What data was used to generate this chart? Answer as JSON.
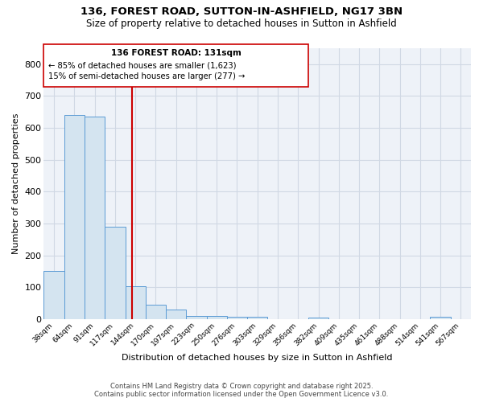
{
  "title_line1": "136, FOREST ROAD, SUTTON-IN-ASHFIELD, NG17 3BN",
  "title_line2": "Size of property relative to detached houses in Sutton in Ashfield",
  "xlabel": "Distribution of detached houses by size in Sutton in Ashfield",
  "ylabel": "Number of detached properties",
  "categories": [
    "38sqm",
    "64sqm",
    "91sqm",
    "117sqm",
    "144sqm",
    "170sqm",
    "197sqm",
    "223sqm",
    "250sqm",
    "276sqm",
    "303sqm",
    "329sqm",
    "356sqm",
    "382sqm",
    "409sqm",
    "435sqm",
    "461sqm",
    "488sqm",
    "514sqm",
    "541sqm",
    "567sqm"
  ],
  "values": [
    150,
    640,
    635,
    290,
    103,
    45,
    30,
    10,
    10,
    8,
    6,
    0,
    0,
    5,
    0,
    0,
    0,
    0,
    0,
    8,
    0
  ],
  "bar_color": "#d4e4f0",
  "bar_edge_color": "#5b9bd5",
  "vline_x": 3.85,
  "vline_color": "#cc0000",
  "annotation_title": "136 FOREST ROAD: 131sqm",
  "annotation_line1": "← 85% of detached houses are smaller (1,623)",
  "annotation_line2": "15% of semi-detached houses are larger (277) →",
  "annotation_box_color": "#cc0000",
  "plot_bg_color": "#eef2f8",
  "grid_color": "#d0d8e4",
  "footer_line1": "Contains HM Land Registry data © Crown copyright and database right 2025.",
  "footer_line2": "Contains public sector information licensed under the Open Government Licence v3.0.",
  "ylim": [
    0,
    850
  ],
  "yticks": [
    0,
    100,
    200,
    300,
    400,
    500,
    600,
    700,
    800
  ]
}
